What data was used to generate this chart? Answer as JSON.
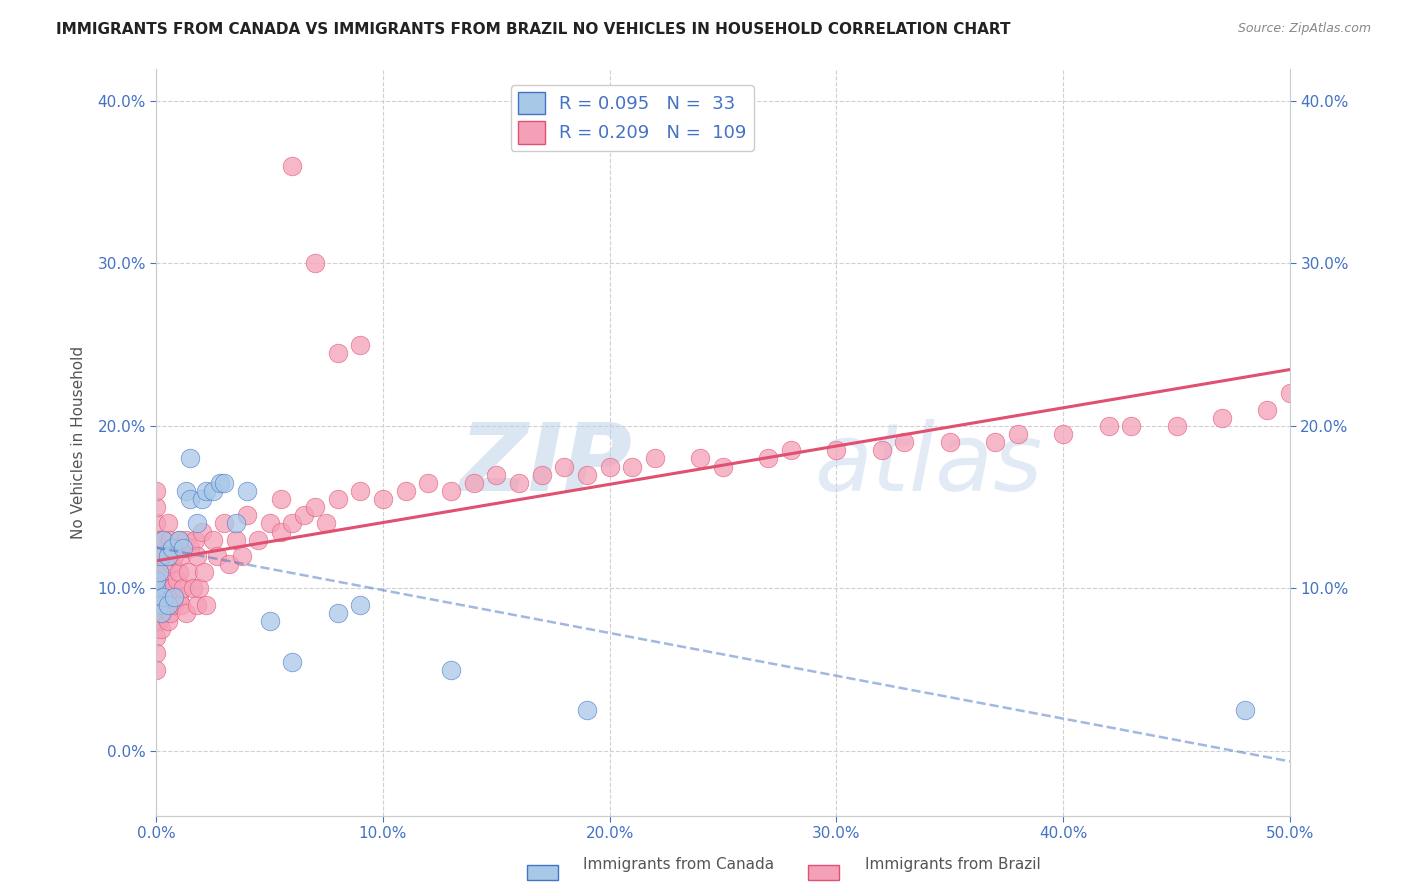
{
  "title": "IMMIGRANTS FROM CANADA VS IMMIGRANTS FROM BRAZIL NO VEHICLES IN HOUSEHOLD CORRELATION CHART",
  "source": "Source: ZipAtlas.com",
  "ylabel": "No Vehicles in Household",
  "xlim": [
    0.0,
    0.5
  ],
  "ylim": [
    -0.04,
    0.42
  ],
  "xticks": [
    0.0,
    0.1,
    0.2,
    0.3,
    0.4,
    0.5
  ],
  "xticklabels": [
    "0.0%",
    "10.0%",
    "20.0%",
    "30.0%",
    "40.0%",
    "50.0%"
  ],
  "yticks_left": [
    0.0,
    0.1,
    0.2,
    0.3,
    0.4
  ],
  "yticklabels_left": [
    "0.0%",
    "10.0%",
    "20.0%",
    "30.0%",
    "40.0%"
  ],
  "yticks_right": [
    0.1,
    0.2,
    0.3,
    0.4
  ],
  "yticklabels_right": [
    "10.0%",
    "20.0%",
    "30.0%",
    "40.0%"
  ],
  "canada_R": 0.095,
  "canada_N": 33,
  "brazil_R": 0.209,
  "brazil_N": 109,
  "canada_color": "#a8c8e8",
  "brazil_color": "#f4a0b8",
  "canada_line_color": "#4472c4",
  "brazil_line_color": "#e05070",
  "canada_trend_style": "--",
  "brazil_trend_style": "-",
  "legend_label_canada": "Immigrants from Canada",
  "legend_label_brazil": "Immigrants from Brazil",
  "watermark_zip": "ZIP",
  "watermark_atlas": "atlas",
  "background_color": "#ffffff",
  "grid_color": "#d0d0d0",
  "tick_color": "#4472c4",
  "title_color": "#222222",
  "source_color": "#888888",
  "canada_x": [
    0.0,
    0.0,
    0.0,
    0.001,
    0.001,
    0.002,
    0.002,
    0.003,
    0.003,
    0.005,
    0.005,
    0.007,
    0.008,
    0.01,
    0.012,
    0.013,
    0.015,
    0.015,
    0.018,
    0.02,
    0.022,
    0.025,
    0.028,
    0.03,
    0.035,
    0.04,
    0.05,
    0.06,
    0.08,
    0.09,
    0.13,
    0.19,
    0.48
  ],
  "canada_y": [
    0.095,
    0.1,
    0.105,
    0.09,
    0.11,
    0.085,
    0.12,
    0.095,
    0.13,
    0.09,
    0.12,
    0.125,
    0.095,
    0.13,
    0.125,
    0.16,
    0.155,
    0.18,
    0.14,
    0.155,
    0.16,
    0.16,
    0.165,
    0.165,
    0.14,
    0.16,
    0.08,
    0.055,
    0.085,
    0.09,
    0.05,
    0.025,
    0.025
  ],
  "brazil_x": [
    0.0,
    0.0,
    0.0,
    0.0,
    0.0,
    0.0,
    0.0,
    0.0,
    0.0,
    0.0,
    0.0,
    0.0,
    0.0,
    0.0,
    0.001,
    0.001,
    0.001,
    0.001,
    0.001,
    0.001,
    0.002,
    0.002,
    0.002,
    0.003,
    0.003,
    0.003,
    0.004,
    0.004,
    0.005,
    0.005,
    0.005,
    0.005,
    0.005,
    0.006,
    0.006,
    0.007,
    0.007,
    0.008,
    0.008,
    0.009,
    0.01,
    0.01,
    0.01,
    0.011,
    0.011,
    0.012,
    0.013,
    0.013,
    0.014,
    0.015,
    0.016,
    0.017,
    0.018,
    0.018,
    0.019,
    0.02,
    0.021,
    0.022,
    0.025,
    0.027,
    0.03,
    0.032,
    0.035,
    0.038,
    0.04,
    0.045,
    0.05,
    0.055,
    0.055,
    0.06,
    0.065,
    0.07,
    0.075,
    0.08,
    0.09,
    0.1,
    0.11,
    0.12,
    0.13,
    0.14,
    0.15,
    0.16,
    0.17,
    0.18,
    0.19,
    0.2,
    0.21,
    0.22,
    0.24,
    0.25,
    0.27,
    0.28,
    0.3,
    0.32,
    0.33,
    0.35,
    0.37,
    0.38,
    0.4,
    0.42,
    0.43,
    0.45,
    0.47,
    0.49,
    0.5,
    0.06,
    0.07,
    0.08,
    0.09
  ],
  "brazil_y": [
    0.09,
    0.1,
    0.11,
    0.08,
    0.12,
    0.07,
    0.13,
    0.06,
    0.14,
    0.09,
    0.05,
    0.08,
    0.15,
    0.16,
    0.1,
    0.09,
    0.12,
    0.08,
    0.11,
    0.13,
    0.09,
    0.12,
    0.075,
    0.1,
    0.13,
    0.085,
    0.11,
    0.09,
    0.1,
    0.14,
    0.08,
    0.12,
    0.09,
    0.13,
    0.085,
    0.1,
    0.115,
    0.09,
    0.12,
    0.105,
    0.095,
    0.13,
    0.11,
    0.09,
    0.12,
    0.1,
    0.13,
    0.085,
    0.11,
    0.125,
    0.1,
    0.13,
    0.09,
    0.12,
    0.1,
    0.135,
    0.11,
    0.09,
    0.13,
    0.12,
    0.14,
    0.115,
    0.13,
    0.12,
    0.145,
    0.13,
    0.14,
    0.135,
    0.155,
    0.14,
    0.145,
    0.15,
    0.14,
    0.155,
    0.16,
    0.155,
    0.16,
    0.165,
    0.16,
    0.165,
    0.17,
    0.165,
    0.17,
    0.175,
    0.17,
    0.175,
    0.175,
    0.18,
    0.18,
    0.175,
    0.18,
    0.185,
    0.185,
    0.185,
    0.19,
    0.19,
    0.19,
    0.195,
    0.195,
    0.2,
    0.2,
    0.2,
    0.205,
    0.21,
    0.22,
    0.36,
    0.3,
    0.245,
    0.25
  ]
}
